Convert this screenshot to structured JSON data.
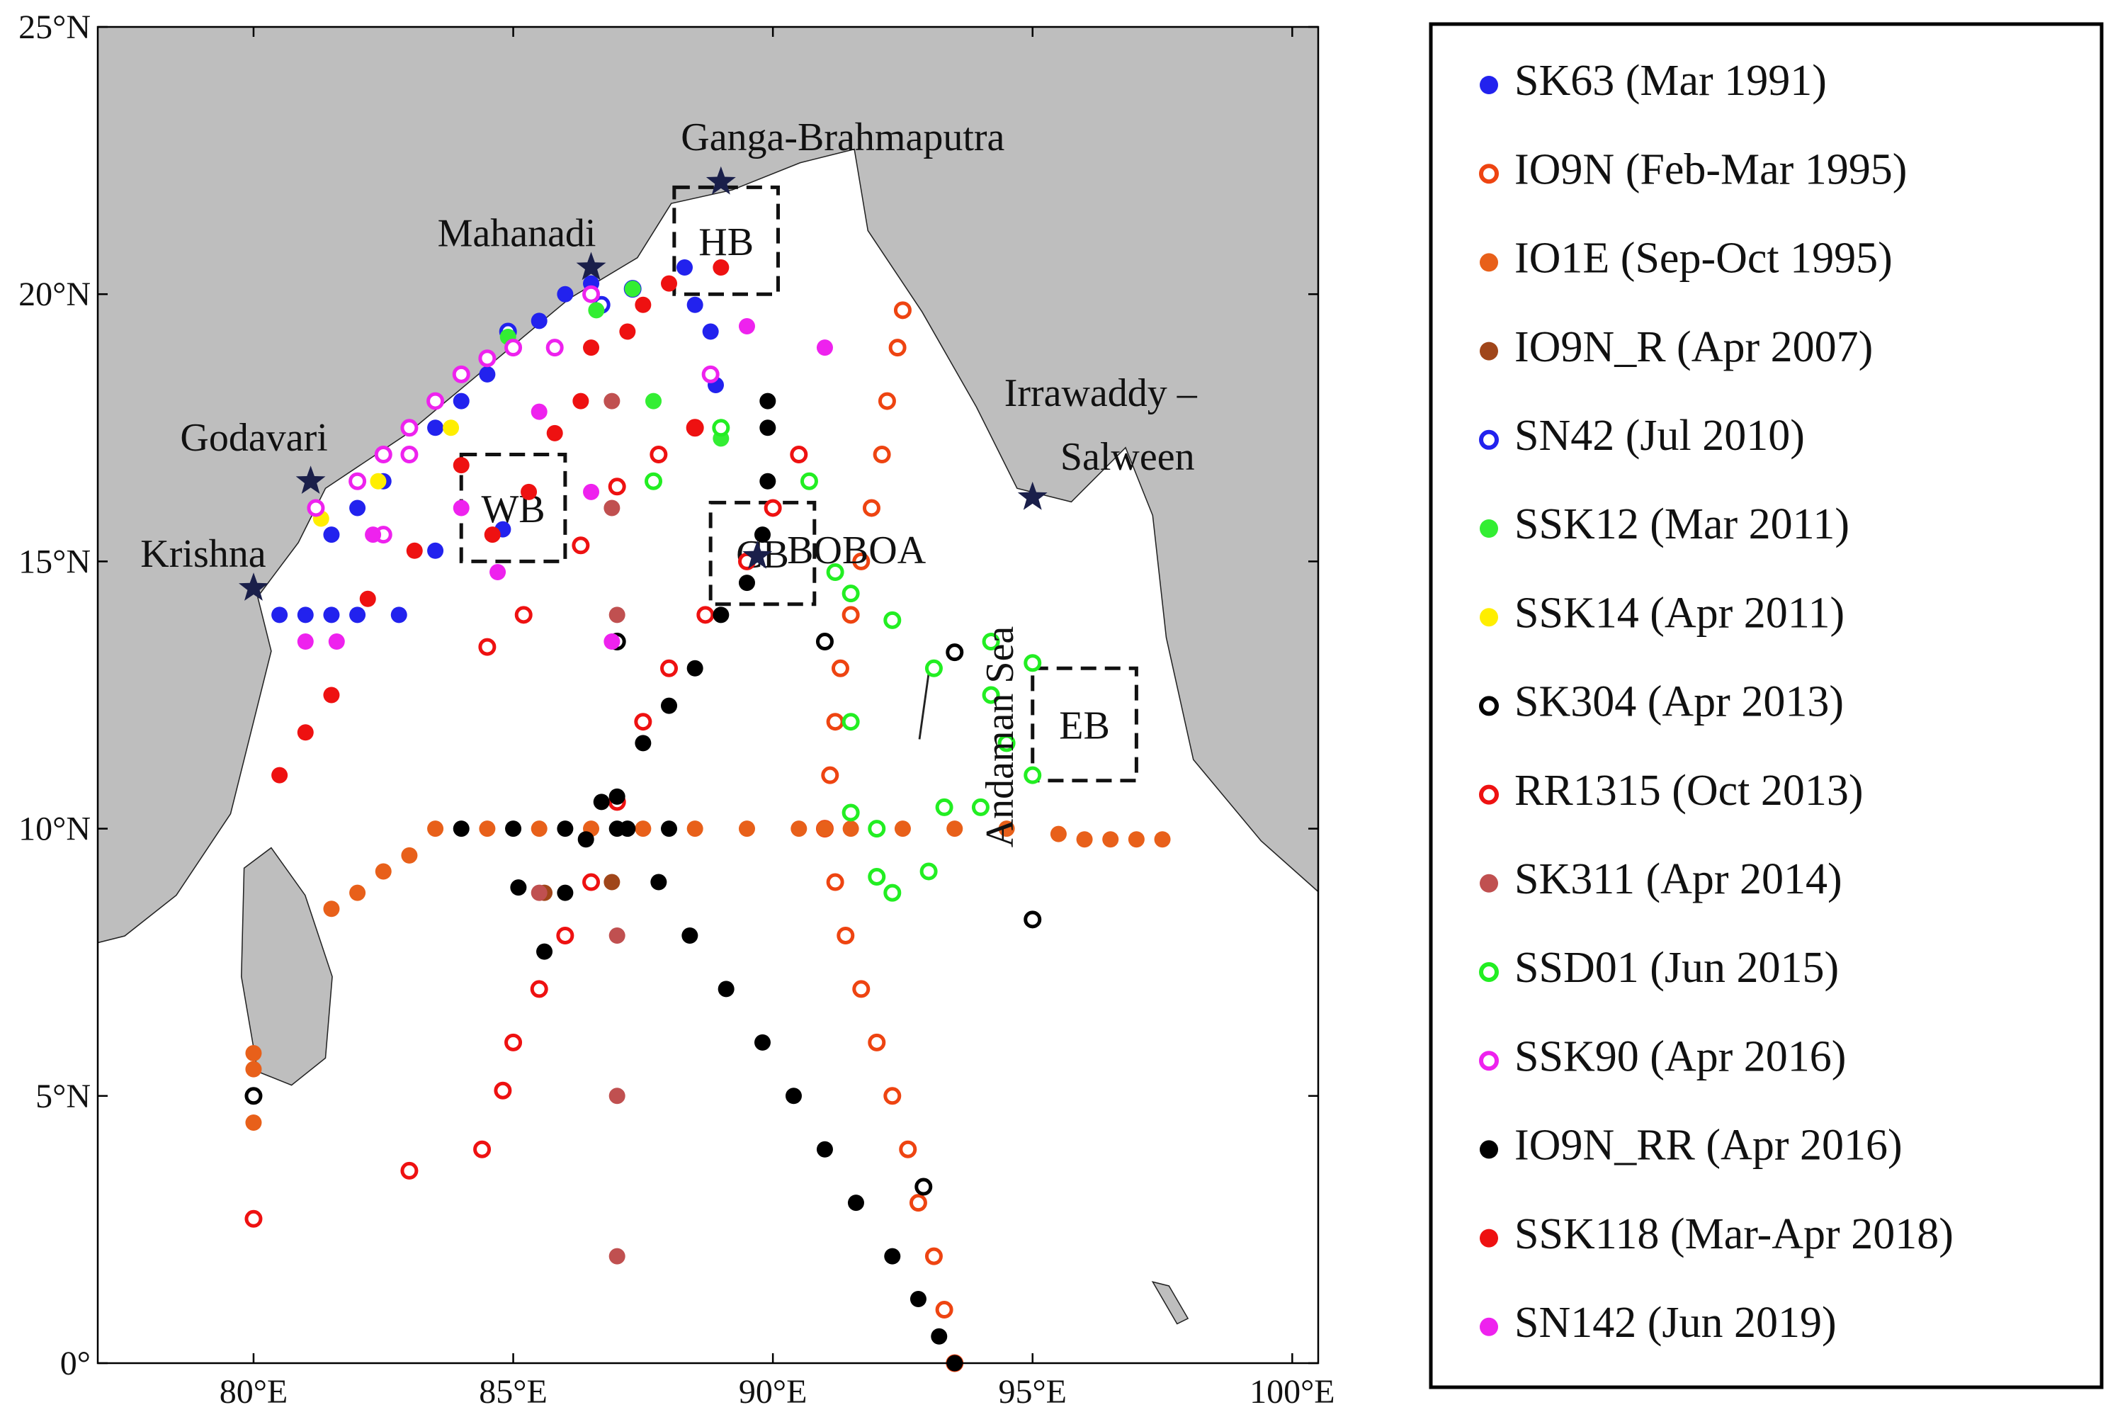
{
  "chart_data": {
    "type": "map",
    "xlim": [
      77,
      100.5
    ],
    "ylim": [
      0,
      25
    ],
    "xticks": [
      {
        "value": 80,
        "label": "80°E"
      },
      {
        "value": 85,
        "label": "85°E"
      },
      {
        "value": 90,
        "label": "90°E"
      },
      {
        "value": 95,
        "label": "95°E"
      },
      {
        "value": 100,
        "label": "100°E"
      }
    ],
    "yticks": [
      {
        "value": 0,
        "label": "0°"
      },
      {
        "value": 5,
        "label": "5°N"
      },
      {
        "value": 10,
        "label": "10°N"
      },
      {
        "value": 15,
        "label": "15°N"
      },
      {
        "value": 20,
        "label": "20°N"
      },
      {
        "value": 25,
        "label": "25°N"
      }
    ],
    "grid": false,
    "places": [
      {
        "label": [
          "Ganga-Brahmaputra"
        ],
        "lon": 89.0,
        "lat": 22.1
      },
      {
        "label": [
          "Mahanadi"
        ],
        "lon": 86.5,
        "lat": 20.5
      },
      {
        "label": [
          "Godavari"
        ],
        "lon": 81.1,
        "lat": 16.5
      },
      {
        "label": [
          "Krishna"
        ],
        "lon": 80.0,
        "lat": 14.5
      },
      {
        "label": [
          "Irrawaddy –",
          "Salween"
        ],
        "lon": 95.0,
        "lat": 16.2
      },
      {
        "label": [
          "BOBOA"
        ],
        "lon": 89.7,
        "lat": 15.1
      }
    ],
    "boxes": [
      {
        "label": "HB",
        "lon": [
          88.1,
          90.1
        ],
        "lat": [
          20.0,
          22.0
        ]
      },
      {
        "label": "WB",
        "lon": [
          84.0,
          86.0
        ],
        "lat": [
          15.0,
          17.0
        ]
      },
      {
        "label": "CB",
        "lon": [
          88.8,
          90.8
        ],
        "lat": [
          14.2,
          16.1
        ]
      },
      {
        "label": "EB",
        "lon": [
          95.0,
          97.0
        ],
        "lat": [
          10.9,
          13.0
        ]
      }
    ],
    "annotations": [
      "Andaman Sea"
    ],
    "series": [
      {
        "name": "SK63 (Mar 1991)",
        "color": "#2222ee",
        "marker": "filled",
        "lon": [
          80.5,
          81.0,
          81.5,
          82.0,
          81.5,
          82.0,
          82.5,
          83.0,
          83.5,
          84.0,
          84.5,
          85.0,
          85.5,
          86.0,
          86.5,
          82.8,
          83.5,
          88.3,
          88.5,
          88.8,
          88.9,
          89.0,
          84.8
        ],
        "lat": [
          14.0,
          14.0,
          14.0,
          14.0,
          15.5,
          16.0,
          16.5,
          17.0,
          17.5,
          18.0,
          18.5,
          19.0,
          19.5,
          20.0,
          20.2,
          14.0,
          15.2,
          20.5,
          19.8,
          19.3,
          18.3,
          17.5,
          15.6
        ]
      },
      {
        "name": "IO9N (Feb-Mar 1995)",
        "color": "#ee4411",
        "marker": "open",
        "lon": [
          93.5,
          93.3,
          93.1,
          92.8,
          92.6,
          92.3,
          92.0,
          91.7,
          91.4,
          91.2,
          91.0,
          91.1,
          91.2,
          91.3,
          91.5,
          91.7,
          91.9,
          92.1,
          92.2,
          92.4,
          92.5
        ],
        "lat": [
          0,
          1,
          2,
          3,
          4,
          5,
          6,
          7,
          8,
          9,
          10,
          11,
          12,
          13,
          14,
          15,
          16,
          17,
          18,
          19,
          19.7
        ]
      },
      {
        "name": "IO1E (Sep-Oct 1995)",
        "color": "#e8601a",
        "marker": "filled",
        "lon": [
          81.5,
          82.0,
          82.5,
          83.0,
          83.5,
          84.5,
          85.5,
          86.5,
          87.5,
          88.5,
          89.5,
          90.5,
          91.0,
          91.5,
          92.5,
          93.5,
          94.5,
          95.5,
          96.0,
          96.5,
          97.0,
          97.5,
          80.0,
          80.0,
          80.0
        ],
        "lat": [
          8.5,
          8.8,
          9.2,
          9.5,
          10.0,
          10.0,
          10.0,
          10.0,
          10.0,
          10.0,
          10.0,
          10.0,
          10.0,
          10.0,
          10.0,
          10.0,
          10.0,
          9.9,
          9.8,
          9.8,
          9.8,
          9.8,
          4.5,
          5.5,
          5.8
        ]
      },
      {
        "name": "IO9N_R (Apr 2007)",
        "color": "#a0461a",
        "marker": "filled",
        "lon": [
          85.6,
          86.9
        ],
        "lat": [
          8.8,
          9.0
        ]
      },
      {
        "name": "SN42 (Jul 2010)",
        "color": "#2222ee",
        "marker": "open",
        "lon": [
          84.9,
          86.7,
          87.3
        ],
        "lat": [
          19.3,
          19.8,
          20.1
        ]
      },
      {
        "name": "SSK12 (Mar 2011)",
        "color": "#33ee33",
        "marker": "filled",
        "lon": [
          84.9,
          86.6,
          87.3,
          89.0,
          87.7
        ],
        "lat": [
          19.2,
          19.7,
          20.1,
          17.3,
          18.0
        ]
      },
      {
        "name": "SSK14 (Apr 2011)",
        "color": "#ffee00",
        "marker": "filled",
        "lon": [
          81.3,
          82.4,
          83.8
        ],
        "lat": [
          15.8,
          16.5,
          17.5
        ]
      },
      {
        "name": "SK304 (Apr 2013)",
        "color": "#000000",
        "marker": "open",
        "lon": [
          80.0,
          87.0,
          91.0,
          93.5,
          92.9,
          95.0
        ],
        "lat": [
          5.0,
          13.5,
          13.5,
          13.3,
          3.3,
          8.3
        ]
      },
      {
        "name": "RR1315 (Oct 2013)",
        "color": "#ee1111",
        "marker": "open",
        "lon": [
          80.0,
          83.0,
          84.4,
          84.8,
          85.0,
          85.5,
          86.0,
          86.5,
          87.0,
          87.5,
          88.0,
          88.7,
          89.5,
          90.0,
          90.5,
          84.5,
          85.2,
          86.3,
          87.0,
          87.8,
          88.5
        ],
        "lat": [
          2.7,
          3.6,
          4.0,
          5.1,
          6.0,
          7.0,
          8.0,
          9.0,
          10.5,
          12.0,
          13.0,
          14.0,
          15.0,
          16.0,
          17.0,
          13.4,
          14.0,
          15.3,
          16.4,
          17.0,
          17.5
        ]
      },
      {
        "name": "SK311 (Apr 2014)",
        "color": "#c05050",
        "marker": "filled",
        "lon": [
          87.0,
          86.9,
          86.9,
          87.0,
          87.0,
          87.0,
          85.5
        ],
        "lat": [
          14.0,
          16.0,
          18.0,
          8.0,
          5.0,
          2.0,
          8.8
        ]
      },
      {
        "name": "SSD01 (Jun 2015)",
        "color": "#22ee22",
        "marker": "open",
        "lon": [
          91.5,
          92.3,
          91.5,
          93.1,
          93.3,
          94.0,
          94.5,
          94.2,
          94.2,
          95.0,
          95.0,
          91.5,
          92.0,
          92.3,
          93.0,
          92.0,
          90.7,
          89.0,
          87.7,
          91.2
        ],
        "lat": [
          14.4,
          13.9,
          12.0,
          13.0,
          10.4,
          10.4,
          11.6,
          12.5,
          13.5,
          13.1,
          11.0,
          10.3,
          9.1,
          8.8,
          9.2,
          10.0,
          16.5,
          17.5,
          16.5,
          14.8
        ]
      },
      {
        "name": "SSK90 (Apr 2016)",
        "color": "#ee22ee",
        "marker": "open",
        "lon": [
          81.2,
          82.0,
          82.5,
          83.0,
          83.5,
          84.0,
          84.5,
          85.0,
          85.8,
          86.5,
          83.0,
          82.5,
          88.8
        ],
        "lat": [
          16.0,
          16.5,
          17.0,
          17.5,
          18.0,
          18.5,
          18.8,
          19.0,
          19.0,
          20.0,
          17.0,
          15.5,
          18.5
        ]
      },
      {
        "name": "IO9N_RR (Apr 2016)",
        "color": "#000000",
        "marker": "filled",
        "lon": [
          93.5,
          93.2,
          92.8,
          92.3,
          91.6,
          91.0,
          90.4,
          89.8,
          89.1,
          88.4,
          87.8,
          87.2,
          86.7,
          85.6,
          86.0,
          86.4,
          87.0,
          87.5,
          88.0,
          88.5,
          89.0,
          89.5,
          89.8,
          89.9,
          89.9,
          89.9,
          84.0,
          85.0,
          86.0,
          87.0,
          88.0,
          85.1
        ],
        "lat": [
          0,
          0.5,
          1.2,
          2.0,
          3.0,
          4.0,
          5.0,
          6.0,
          7.0,
          8.0,
          9.0,
          10.0,
          10.5,
          7.7,
          8.8,
          9.8,
          10.6,
          11.6,
          12.3,
          13.0,
          14.0,
          14.6,
          15.5,
          16.5,
          17.5,
          18.0,
          10.0,
          10.0,
          10.0,
          10.0,
          10.0,
          8.9
        ]
      },
      {
        "name": "SSK118 (Mar-Apr 2018)",
        "color": "#ee1111",
        "marker": "filled",
        "lon": [
          80.5,
          81.0,
          81.5,
          82.2,
          83.1,
          84.0,
          84.6,
          85.3,
          85.8,
          86.3,
          86.5,
          87.2,
          88.0,
          89.0,
          87.5,
          88.5
        ],
        "lat": [
          11.0,
          11.8,
          12.5,
          14.3,
          15.2,
          16.8,
          15.5,
          16.3,
          17.4,
          18.0,
          19.0,
          19.3,
          20.2,
          20.5,
          19.8,
          17.5
        ]
      },
      {
        "name": "SN142 (Jun 2019)",
        "color": "#ee22ee",
        "marker": "filled",
        "lon": [
          81.0,
          81.6,
          82.3,
          84.0,
          84.7,
          86.5,
          89.5,
          91.0,
          85.5,
          86.9
        ],
        "lat": [
          13.5,
          13.5,
          15.5,
          16.0,
          14.8,
          16.3,
          19.4,
          19.0,
          17.8,
          13.5
        ]
      }
    ]
  }
}
